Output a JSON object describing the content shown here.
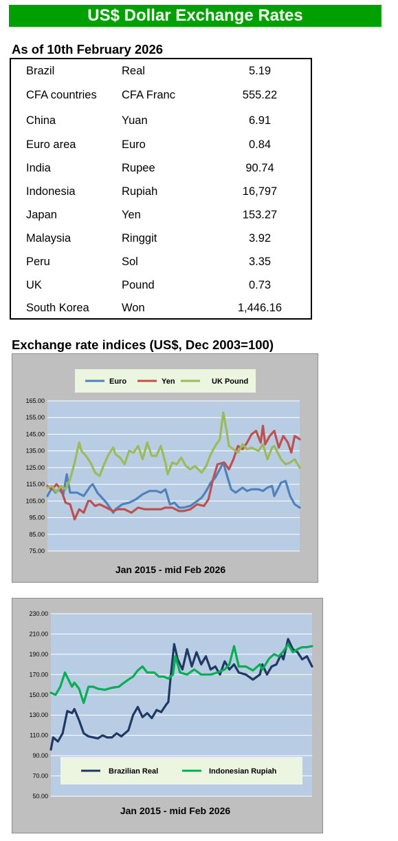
{
  "header": {
    "title": "US$ Dollar Exchange Rates"
  },
  "rates": {
    "as_of": "As of 10th February 2026",
    "rows": [
      {
        "country": "Brazil",
        "currency": "Real",
        "value": "5.19"
      },
      {
        "country": "CFA countries",
        "currency": "CFA Franc",
        "value": "555.22"
      },
      {
        "country": "China",
        "currency": "Yuan",
        "value": "6.91"
      },
      {
        "country": "Euro area",
        "currency": "Euro",
        "value": "0.84"
      },
      {
        "country": "India",
        "currency": "Rupee",
        "value": "90.74"
      },
      {
        "country": "Indonesia",
        "currency": "Rupiah",
        "value": "16,797"
      },
      {
        "country": "Japan",
        "currency": "Yen",
        "value": "153.27"
      },
      {
        "country": "Malaysia",
        "currency": "Ringgit",
        "value": "3.92"
      },
      {
        "country": "Peru",
        "currency": "Sol",
        "value": "3.35"
      },
      {
        "country": "UK",
        "currency": "Pound",
        "value": "0.73"
      },
      {
        "country": "South Korea",
        "currency": "Won",
        "value": "1,446.16"
      }
    ]
  },
  "indices": {
    "title": "Exchange rate indices (US$, Dec 2003=100)"
  },
  "chart_data": [
    {
      "type": "line",
      "xlabel": "Jan 2015 - mid Feb  2026",
      "ylim": [
        75,
        165
      ],
      "yticks": [
        "165.00",
        "155.00",
        "145.00",
        "135.00",
        "125.00",
        "115.00",
        "105.00",
        "95.00",
        "85.00",
        "75.00"
      ],
      "grid": true,
      "legend": "top",
      "x_range": [
        2015.0,
        2026.12
      ],
      "series": [
        {
          "name": "Euro",
          "color": "#4f81bd",
          "x": [
            2015.0,
            2015.2,
            2015.35,
            2015.5,
            2015.7,
            2015.85,
            2016.0,
            2016.3,
            2016.6,
            2016.9,
            2017.0,
            2017.2,
            2017.4,
            2017.6,
            2017.9,
            2018.0,
            2018.3,
            2018.6,
            2018.9,
            2019.2,
            2019.5,
            2019.8,
            2020.0,
            2020.2,
            2020.4,
            2020.6,
            2020.8,
            2021.0,
            2021.3,
            2021.5,
            2021.8,
            2022.0,
            2022.2,
            2022.4,
            2022.6,
            2022.75,
            2022.9,
            2023.1,
            2023.3,
            2023.6,
            2023.8,
            2024.0,
            2024.3,
            2024.5,
            2024.7,
            2024.9,
            2025.0,
            2025.15,
            2025.3,
            2025.5,
            2025.7,
            2025.9,
            2026.12
          ],
          "y": [
            108,
            113,
            110,
            112,
            109,
            121,
            110,
            110,
            108,
            114,
            115,
            110,
            107,
            104,
            98,
            100,
            103,
            104,
            106,
            109,
            111,
            111,
            110,
            112,
            103,
            104,
            101,
            101,
            102,
            104,
            107,
            111,
            116,
            119,
            124,
            128,
            121,
            112,
            110,
            113,
            111,
            112,
            112,
            111,
            113,
            114,
            108,
            112,
            116,
            117,
            108,
            103,
            101
          ]
        },
        {
          "name": "Yen",
          "color": "#c0504d",
          "x": [
            2015.0,
            2015.2,
            2015.4,
            2015.6,
            2015.8,
            2016.0,
            2016.2,
            2016.4,
            2016.6,
            2016.8,
            2016.9,
            2017.1,
            2017.3,
            2017.6,
            2017.9,
            2018.1,
            2018.4,
            2018.7,
            2019.0,
            2019.3,
            2019.6,
            2020.0,
            2020.2,
            2020.5,
            2020.8,
            2021.0,
            2021.3,
            2021.6,
            2021.9,
            2022.1,
            2022.3,
            2022.5,
            2022.8,
            2023.0,
            2023.2,
            2023.4,
            2023.6,
            2023.8,
            2024.0,
            2024.2,
            2024.4,
            2024.5,
            2024.6,
            2024.8,
            2025.0,
            2025.2,
            2025.4,
            2025.6,
            2025.75,
            2025.9,
            2026.12
          ],
          "y": [
            114,
            112,
            115,
            112,
            104,
            103,
            94,
            100,
            98,
            105,
            105,
            102,
            103,
            101,
            99,
            100,
            100,
            98,
            101,
            100,
            100,
            100,
            101,
            101,
            99,
            99,
            100,
            103,
            102,
            106,
            118,
            127,
            128,
            124,
            130,
            138,
            136,
            140,
            145,
            147,
            140,
            150,
            139,
            144,
            147,
            137,
            144,
            140,
            134,
            144,
            142
          ]
        },
        {
          "name": "UK Pound",
          "color": "#9bbb59",
          "x": [
            2015.0,
            2015.2,
            2015.4,
            2015.6,
            2015.8,
            2016.0,
            2016.2,
            2016.4,
            2016.5,
            2016.7,
            2016.9,
            2017.1,
            2017.3,
            2017.5,
            2017.7,
            2017.9,
            2018.0,
            2018.2,
            2018.4,
            2018.6,
            2018.8,
            2019.0,
            2019.2,
            2019.4,
            2019.6,
            2019.8,
            2020.0,
            2020.2,
            2020.3,
            2020.5,
            2020.7,
            2020.9,
            2021.1,
            2021.3,
            2021.5,
            2021.8,
            2022.0,
            2022.2,
            2022.4,
            2022.6,
            2022.75,
            2022.9,
            2023.0,
            2023.2,
            2023.4,
            2023.6,
            2023.8,
            2024.0,
            2024.3,
            2024.5,
            2024.7,
            2024.9,
            2025.0,
            2025.3,
            2025.5,
            2025.7,
            2025.9,
            2026.12
          ],
          "y": [
            113,
            114,
            110,
            114,
            112,
            118,
            128,
            140,
            135,
            132,
            128,
            122,
            120,
            127,
            133,
            137,
            133,
            131,
            127,
            135,
            134,
            138,
            130,
            140,
            132,
            132,
            138,
            128,
            121,
            128,
            127,
            131,
            126,
            124,
            126,
            122,
            126,
            133,
            138,
            142,
            158,
            147,
            138,
            136,
            134,
            139,
            136,
            137,
            135,
            139,
            130,
            137,
            138,
            130,
            127,
            128,
            130,
            125
          ]
        }
      ]
    },
    {
      "type": "line",
      "xlabel": "Jan 2015 - mid Feb 2026",
      "ylim": [
        50,
        230
      ],
      "yticks": [
        "230.00",
        "210.00",
        "190.00",
        "170.00",
        "150.00",
        "130.00",
        "110.00",
        "90.00",
        "70.00",
        "50.00"
      ],
      "grid": true,
      "legend": "bottom",
      "x_range": [
        2015.0,
        2026.12
      ],
      "series": [
        {
          "name": "Brazilian Real",
          "color": "#1f3864",
          "x": [
            2015.0,
            2015.1,
            2015.3,
            2015.5,
            2015.7,
            2015.9,
            2016.0,
            2016.2,
            2016.4,
            2016.6,
            2016.8,
            2017.0,
            2017.2,
            2017.4,
            2017.6,
            2017.8,
            2018.0,
            2018.3,
            2018.5,
            2018.7,
            2018.9,
            2019.1,
            2019.3,
            2019.5,
            2019.7,
            2019.9,
            2020.0,
            2020.1,
            2020.25,
            2020.4,
            2020.6,
            2020.8,
            2021.0,
            2021.2,
            2021.4,
            2021.6,
            2021.8,
            2022.0,
            2022.2,
            2022.4,
            2022.6,
            2022.8,
            2023.0,
            2023.3,
            2023.6,
            2023.9,
            2024.0,
            2024.2,
            2024.4,
            2024.6,
            2024.8,
            2024.9,
            2025.1,
            2025.3,
            2025.5,
            2025.7,
            2025.9,
            2026.12
          ],
          "y": [
            96,
            108,
            104,
            112,
            134,
            132,
            136,
            125,
            112,
            109,
            108,
            107,
            110,
            108,
            108,
            112,
            109,
            115,
            130,
            138,
            128,
            132,
            127,
            135,
            133,
            140,
            143,
            168,
            200,
            185,
            175,
            195,
            178,
            192,
            180,
            188,
            175,
            178,
            170,
            183,
            175,
            180,
            172,
            170,
            165,
            170,
            180,
            170,
            178,
            180,
            190,
            185,
            205,
            195,
            192,
            185,
            188,
            178
          ]
        },
        {
          "name": "Indonesian Rupiah",
          "color": "#00b050",
          "x": [
            2015.0,
            2015.2,
            2015.4,
            2015.6,
            2015.75,
            2015.9,
            2016.0,
            2016.2,
            2016.4,
            2016.6,
            2016.8,
            2017.0,
            2017.3,
            2017.6,
            2017.9,
            2018.0,
            2018.3,
            2018.5,
            2018.7,
            2018.9,
            2019.1,
            2019.4,
            2019.6,
            2019.8,
            2020.0,
            2020.2,
            2020.3,
            2020.5,
            2020.8,
            2021.1,
            2021.4,
            2021.8,
            2022.1,
            2022.4,
            2022.6,
            2022.8,
            2023.0,
            2023.3,
            2023.6,
            2023.9,
            2024.0,
            2024.3,
            2024.5,
            2024.7,
            2024.9,
            2025.1,
            2025.3,
            2025.5,
            2025.7,
            2025.9,
            2026.12
          ],
          "y": [
            152,
            150,
            158,
            172,
            165,
            158,
            162,
            156,
            142,
            158,
            158,
            156,
            155,
            157,
            158,
            160,
            165,
            168,
            174,
            178,
            172,
            172,
            168,
            168,
            166,
            170,
            188,
            172,
            170,
            175,
            170,
            170,
            172,
            175,
            180,
            198,
            178,
            178,
            174,
            180,
            175,
            186,
            190,
            188,
            193,
            200,
            192,
            195,
            197,
            197,
            198
          ]
        }
      ]
    }
  ]
}
